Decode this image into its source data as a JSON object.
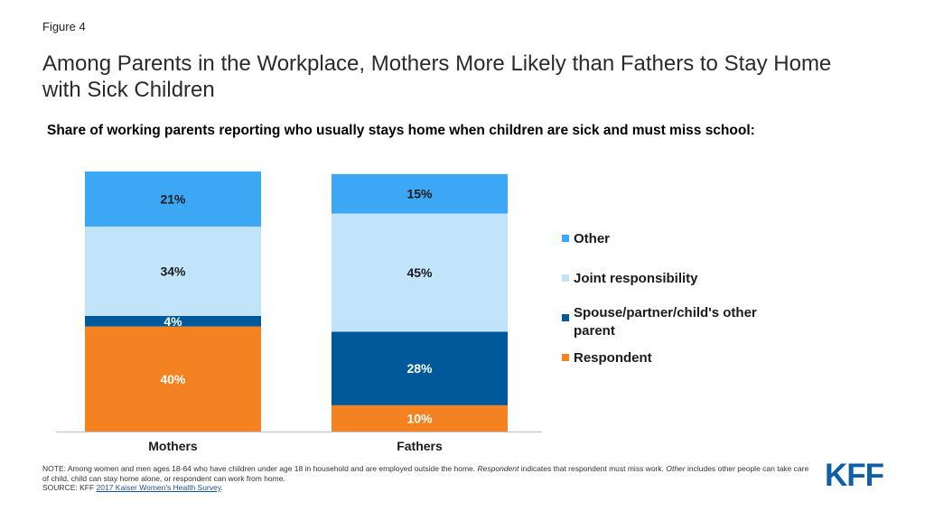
{
  "figure_label": "Figure 4",
  "title": "Among Parents in the Workplace, Mothers More Likely than Fathers to Stay Home with Sick Children",
  "subtitle": "Share of working parents reporting who usually stays home when children are sick and must miss school:",
  "chart_data": {
    "type": "bar",
    "stacked": true,
    "categories": [
      "Mothers",
      "Fathers"
    ],
    "series": [
      {
        "name": "Respondent",
        "values": [
          40,
          10
        ],
        "labels": [
          "40%",
          "10%"
        ],
        "color": "#f58220",
        "label_color": "#ffffff"
      },
      {
        "name": "Spouse/partner/child's other parent",
        "values": [
          4,
          28
        ],
        "labels": [
          "4%",
          "28%"
        ],
        "color": "#00599b",
        "label_color": "#ffffff"
      },
      {
        "name": "Joint responsibility",
        "values": [
          34,
          45
        ],
        "labels": [
          "34%",
          "45%"
        ],
        "color": "#c2e4fa",
        "label_color": "#1a1a1a"
      },
      {
        "name": "Other",
        "values": [
          21,
          15
        ],
        "labels": [
          "21%",
          "15%"
        ],
        "color": "#3ba7f5",
        "label_color": "#1a1a1a"
      }
    ],
    "legend_order": [
      "Other",
      "Joint responsibility",
      "Spouse/partner/child's other parent",
      "Respondent"
    ],
    "legend_position": "right",
    "ylim": [
      0,
      100
    ],
    "grid": false
  },
  "note": {
    "line1_prefix": "NOTE: Among women and men ages 18-64  who have children under age 18 in household and are employed outside the home. ",
    "term_respondent": "Respondent",
    "line1_mid": " indicates that respondent must miss work. ",
    "term_other": "Other",
    "line1_suffix": " includes other people  can take care of child, child can stay home alone, or respondent  can work from home.",
    "source_prefix": "SOURCE: KFF ",
    "source_link": "2017 Kaiser Women's Health Survey",
    "source_suffix": "."
  },
  "logo_text": "KFF"
}
